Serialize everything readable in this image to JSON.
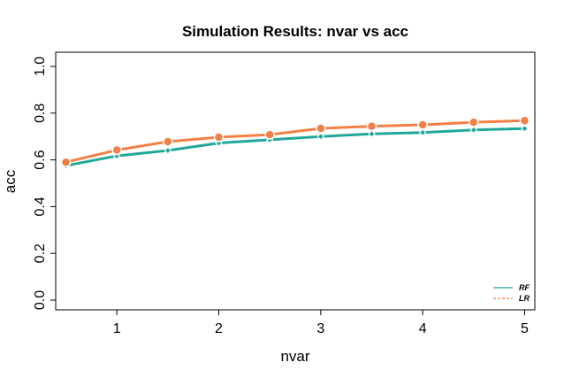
{
  "chart_data": {
    "type": "line",
    "title": "Simulation Results: nvar vs acc",
    "xlabel": "nvar",
    "ylabel": "acc",
    "xlim": [
      0.4,
      5.1
    ],
    "ylim": [
      0.0,
      1.0
    ],
    "xticks": [
      "1",
      "2",
      "3",
      "4",
      "5"
    ],
    "yticks": [
      "0.0",
      "0.2",
      "0.4",
      "0.6",
      "0.8",
      "1.0"
    ],
    "grid": false,
    "legend_position": "bottom-right",
    "x": [
      0.5,
      1.0,
      1.5,
      2.0,
      2.5,
      3.0,
      3.5,
      4.0,
      4.5,
      5.0
    ],
    "series": [
      {
        "name": "RF",
        "color": "#20A79A",
        "line_style": "solid",
        "values": [
          0.575,
          0.617,
          0.64,
          0.672,
          0.686,
          0.7,
          0.711,
          0.717,
          0.728,
          0.734
        ]
      },
      {
        "name": "LR",
        "color": "#F47F45",
        "line_style": "dashed",
        "values": [
          0.59,
          0.642,
          0.678,
          0.697,
          0.708,
          0.735,
          0.744,
          0.75,
          0.761,
          0.768
        ]
      }
    ]
  }
}
